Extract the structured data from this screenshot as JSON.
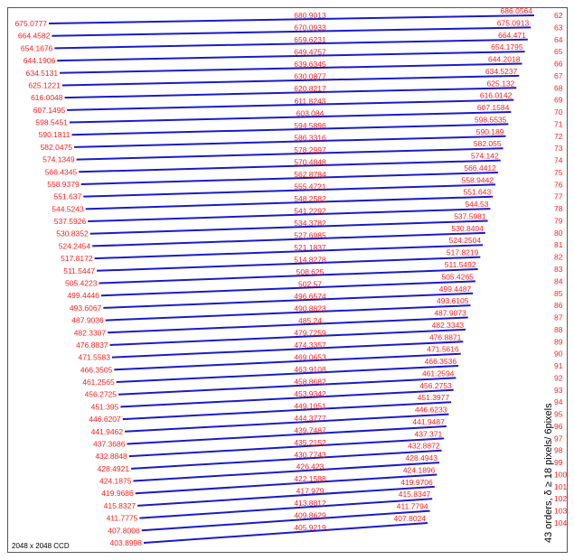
{
  "colors": {
    "line": "#1a1acc",
    "label": "#ff2020",
    "text": "#000000",
    "frame": "#555555"
  },
  "side_note": "43 orders, δ ≥ 18 pixels/ 6pixels",
  "footer_note": "2048 x 2048 CCD",
  "orders": [
    {
      "order": "62",
      "left": "675.0777",
      "mid": "680.9013",
      "right": "686.0564"
    },
    {
      "order": "63",
      "left": "664.4582",
      "mid": "670.0933",
      "right": "675.0913"
    },
    {
      "order": "64",
      "left": "654.1676",
      "mid": "659.6231",
      "right": "664.471"
    },
    {
      "order": "65",
      "left": "644.1906",
      "mid": "649.4757",
      "right": "654.1795"
    },
    {
      "order": "66",
      "left": "634.5131",
      "mid": "639.6345",
      "right": "644.2018"
    },
    {
      "order": "67",
      "left": "625.1221",
      "mid": "630.0877",
      "right": "634.5237"
    },
    {
      "order": "68",
      "left": "616.0048",
      "mid": "620.8217",
      "right": "625.132"
    },
    {
      "order": "69",
      "left": "607.1495",
      "mid": "611.8243",
      "right": "616.0142"
    },
    {
      "order": "70",
      "left": "598.5451",
      "mid": "603.084",
      "right": "607.1584"
    },
    {
      "order": "71",
      "left": "590.1811",
      "mid": "594.5896",
      "right": "598.5535"
    },
    {
      "order": "72",
      "left": "582.0475",
      "mid": "586.3316",
      "right": "590.189"
    },
    {
      "order": "73",
      "left": "574.1349",
      "mid": "578.2997",
      "right": "582.055"
    },
    {
      "order": "74",
      "left": "566.4345",
      "mid": "570.4848",
      "right": "574.142"
    },
    {
      "order": "75",
      "left": "558.9379",
      "mid": "562.8784",
      "right": "566.4412"
    },
    {
      "order": "76",
      "left": "551.637",
      "mid": "555.4721",
      "right": "558.9442"
    },
    {
      "order": "77",
      "left": "544.5243",
      "mid": "548.2582",
      "right": "551.643"
    },
    {
      "order": "78",
      "left": "537.5926",
      "mid": "541.2292",
      "right": "544.53"
    },
    {
      "order": "79",
      "left": "530.8352",
      "mid": "534.3782",
      "right": "537.5981"
    },
    {
      "order": "80",
      "left": "524.2454",
      "mid": "527.6985",
      "right": "530.8404"
    },
    {
      "order": "81",
      "left": "517.8172",
      "mid": "521.1837",
      "right": "524.2504"
    },
    {
      "order": "82",
      "left": "511.5447",
      "mid": "514.8278",
      "right": "517.8219"
    },
    {
      "order": "83",
      "left": "505.4223",
      "mid": "508.625",
      "right": "511.5492"
    },
    {
      "order": "84",
      "left": "499.4446",
      "mid": "502.57",
      "right": "505.4265"
    },
    {
      "order": "85",
      "left": "493.6067",
      "mid": "496.6574",
      "right": "499.4487"
    },
    {
      "order": "86",
      "left": "487.9036",
      "mid": "490.8823",
      "right": "493.6105"
    },
    {
      "order": "87",
      "left": "482.3307",
      "mid": "485.24",
      "right": "487.9073"
    },
    {
      "order": "88",
      "left": "476.8837",
      "mid": "479.7259",
      "right": "482.3343"
    },
    {
      "order": "89",
      "left": "471.5583",
      "mid": "474.3357",
      "right": "476.8871"
    },
    {
      "order": "90",
      "left": "466.3505",
      "mid": "469.0653",
      "right": "471.5616"
    },
    {
      "order": "91",
      "left": "461.2565",
      "mid": "463.9108",
      "right": "466.3536"
    },
    {
      "order": "92",
      "left": "456.2725",
      "mid": "458.8682",
      "right": "461.2594"
    },
    {
      "order": "93",
      "left": "451.395",
      "mid": "453.9342",
      "right": "456.2753"
    },
    {
      "order": "94",
      "left": "446.6207",
      "mid": "449.1051",
      "right": "451.3977"
    },
    {
      "order": "95",
      "left": "441.9462",
      "mid": "444.3777",
      "right": "446.6233"
    },
    {
      "order": "96",
      "left": "437.3686",
      "mid": "439.7487",
      "right": "441.9487"
    },
    {
      "order": "97",
      "left": "432.8848",
      "mid": "435.2152",
      "right": "437.371"
    },
    {
      "order": "98",
      "left": "428.4921",
      "mid": "430.7743",
      "right": "432.8872"
    },
    {
      "order": "99",
      "left": "424.1875",
      "mid": "426.423",
      "right": "428.4943"
    },
    {
      "order": "100",
      "left": "419.9686",
      "mid": "422.1588",
      "right": "424.1896"
    },
    {
      "order": "101",
      "left": "415.8327",
      "mid": "417.979",
      "right": "419.9706"
    },
    {
      "order": "102",
      "left": "411.7775",
      "mid": "413.8812",
      "right": "415.8347"
    },
    {
      "order": "103",
      "left": "407.8006",
      "mid": "409.8629",
      "right": "411.7794"
    },
    {
      "order": "104",
      "left": "403.8998",
      "mid": "405.9219",
      "right": "407.8024"
    }
  ]
}
